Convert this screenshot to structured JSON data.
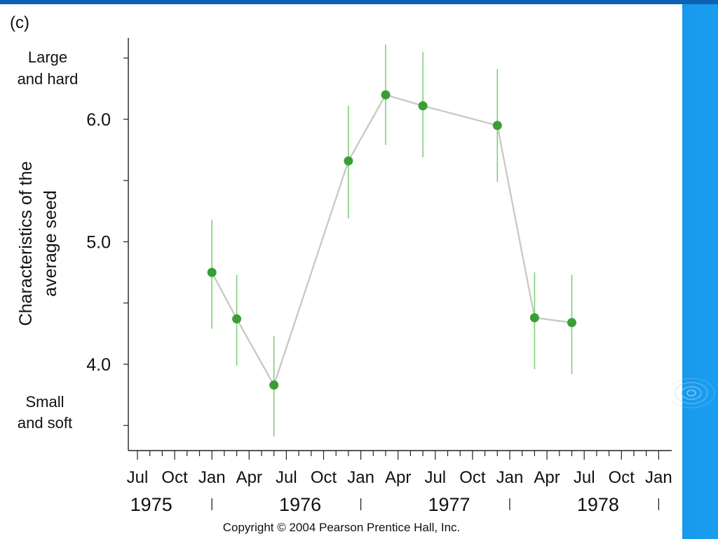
{
  "panel_label": "(c)",
  "top_label": [
    "Large",
    "and hard"
  ],
  "bottom_label": [
    "Small",
    "and soft"
  ],
  "copyright": "Copyright © 2004 Pearson Prentice Hall, Inc.",
  "colors": {
    "marker": "#3a9e36",
    "error_bar": "#7fcf78",
    "line": "#c9cbc3",
    "axis": "#222222",
    "background": "#0d6cbd"
  },
  "chart_data": {
    "type": "line",
    "title": "",
    "xlabel": "",
    "ylabel": "Characteristics of the average seed",
    "ylabel_lines": [
      "Characteristics of the",
      "average seed"
    ],
    "ylim": [
      3.35,
      6.65
    ],
    "yticks": [
      4.0,
      5.0,
      6.0
    ],
    "ytick_labels": [
      "4.0",
      "5.0",
      "6.0"
    ],
    "xlim": [
      "1975-06",
      "1979-01"
    ],
    "xtick_labels": [
      "Jul",
      "Oct",
      "Jan",
      "Apr",
      "Jul",
      "Oct",
      "Jan",
      "Apr",
      "Jul",
      "Oct",
      "Jan",
      "Apr",
      "Jul",
      "Oct",
      "Jan"
    ],
    "xtick_dates": [
      "1975-07",
      "1975-10",
      "1976-01",
      "1976-04",
      "1976-07",
      "1976-10",
      "1977-01",
      "1977-04",
      "1977-07",
      "1977-10",
      "1978-01",
      "1978-04",
      "1978-07",
      "1978-10",
      "1979-01"
    ],
    "year_labels": [
      "1975",
      "1976",
      "1977",
      "1978"
    ],
    "year_label_dates": [
      "1975-08",
      "1976-08",
      "1977-08",
      "1978-08"
    ],
    "year_separator_dates": [
      "1976-01",
      "1977-01",
      "1978-01",
      "1979-01"
    ],
    "series": [
      {
        "points": [
          {
            "x": "1976-01",
            "y": 4.75,
            "err_low": 4.29,
            "err_high": 5.18
          },
          {
            "x": "1976-03",
            "y": 4.37,
            "err_low": 3.99,
            "err_high": 4.73
          },
          {
            "x": "1976-06",
            "y": 3.83,
            "err_low": 3.41,
            "err_high": 4.23
          },
          {
            "x": "1976-12",
            "y": 5.66,
            "err_low": 5.19,
            "err_high": 6.11
          },
          {
            "x": "1977-03",
            "y": 6.2,
            "err_low": 5.79,
            "err_high": 6.61
          },
          {
            "x": "1977-06",
            "y": 6.11,
            "err_low": 5.69,
            "err_high": 6.55
          },
          {
            "x": "1977-12",
            "y": 5.95,
            "err_low": 5.49,
            "err_high": 6.41
          },
          {
            "x": "1978-03",
            "y": 4.38,
            "err_low": 3.96,
            "err_high": 4.75
          },
          {
            "x": "1978-06",
            "y": 4.34,
            "err_low": 3.92,
            "err_high": 4.73
          }
        ]
      }
    ]
  }
}
